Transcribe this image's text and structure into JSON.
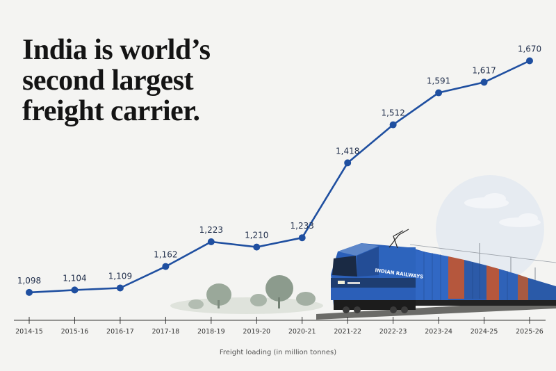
{
  "headline": {
    "line1": "India is world’s",
    "line2": "second largest",
    "line3": "freight carrier."
  },
  "colors": {
    "line": "#1f4fa0",
    "point": "#1f4fa0",
    "train_blue": "#2b5fb8",
    "container_red": "#b5573d"
  },
  "train": {
    "livery_text": "INDIAN RAILWAYS"
  },
  "chart_data": {
    "type": "line",
    "categories": [
      "2014-15",
      "2015-16",
      "2016-17",
      "2017-18",
      "2018-19",
      "2019-20",
      "2020-21",
      "2021-22",
      "2022-23",
      "2023-24",
      "2024-25",
      "2025-26"
    ],
    "series": [
      {
        "values": [
          1098,
          1104,
          1109,
          1162,
          1223,
          1210,
          1233,
          1418,
          1512,
          1591,
          1617,
          1670
        ]
      }
    ],
    "data_labels": [
      "1,098",
      "1,104",
      "1,109",
      "1,162",
      "1,223",
      "1,210",
      "1,233",
      "1,418",
      "1,512",
      "1,591",
      "1,617",
      "1,670"
    ],
    "xlabel": "Freight loading (in million tonnes)",
    "ylim": [
      1000,
      1700
    ],
    "grid": false,
    "legend": "none"
  }
}
